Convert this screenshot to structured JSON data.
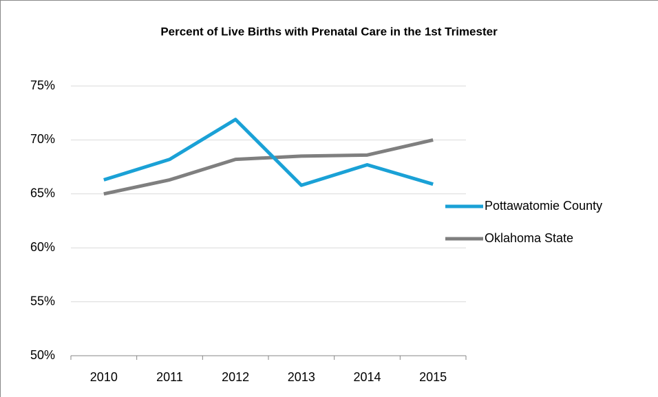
{
  "chart_data": {
    "type": "line",
    "title": "Percent of Live Births with Prenatal Care in the 1st Trimester",
    "categories": [
      "2010",
      "2011",
      "2012",
      "2013",
      "2014",
      "2015"
    ],
    "series": [
      {
        "name": "Pottawatomie County",
        "color": "#1aa1d6",
        "values": [
          66.3,
          68.2,
          71.9,
          65.8,
          67.7,
          65.9
        ]
      },
      {
        "name": "Oklahoma State",
        "color": "#7f7f7f",
        "values": [
          65.0,
          66.3,
          68.2,
          68.5,
          68.6,
          70.0
        ]
      }
    ],
    "ylim": [
      50,
      75
    ],
    "yticks": [
      {
        "value": 50,
        "label": "50%"
      },
      {
        "value": 55,
        "label": "55%"
      },
      {
        "value": 60,
        "label": "60%"
      },
      {
        "value": 65,
        "label": "65%"
      },
      {
        "value": 70,
        "label": "70%"
      },
      {
        "value": 75,
        "label": "75%"
      }
    ],
    "grid": true,
    "legend": "right"
  }
}
